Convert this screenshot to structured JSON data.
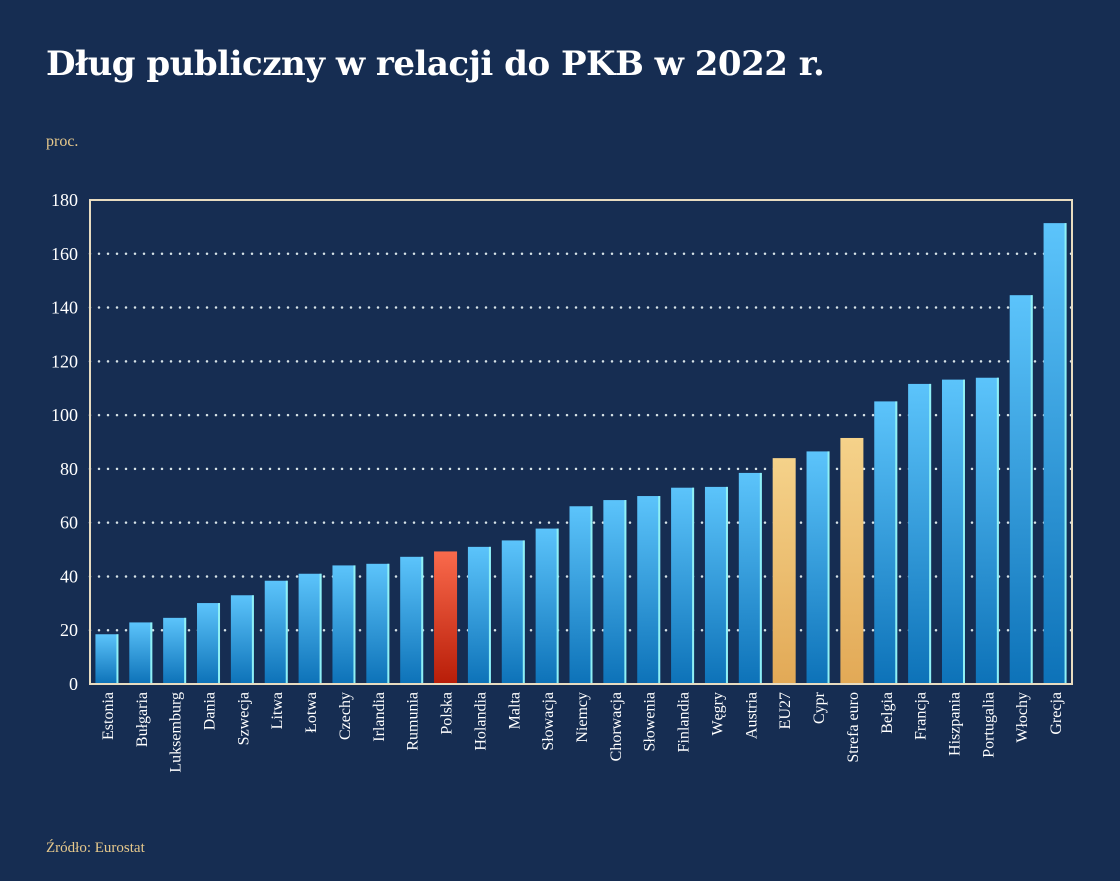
{
  "chart_data": {
    "type": "bar",
    "title": "Dług publiczny w relacji do PKB w 2022 r.",
    "ylabel": "proc.",
    "source": "Źródło: Eurostat",
    "ylim": [
      0,
      180
    ],
    "yticks": [
      0,
      20,
      40,
      60,
      80,
      100,
      120,
      140,
      160,
      180
    ],
    "grid": "horizontal dotted",
    "categories": [
      "Estonia",
      "Bułgaria",
      "Luksemburg",
      "Dania",
      "Szwecja",
      "Litwa",
      "Łotwa",
      "Czechy",
      "Irlandia",
      "Rumunia",
      "Polska",
      "Holandia",
      "Malta",
      "Słowacja",
      "Niemcy",
      "Chorwacja",
      "Słowenia",
      "Finlandia",
      "Węgry",
      "Austria",
      "EU27",
      "Cypr",
      "Strefa euro",
      "Belgia",
      "Francja",
      "Hiszpania",
      "Portugalia",
      "Włochy",
      "Grecja"
    ],
    "values": [
      18.5,
      22.9,
      24.6,
      30.1,
      33.0,
      38.4,
      41.0,
      44.1,
      44.7,
      47.3,
      49.3,
      51.0,
      53.4,
      57.8,
      66.1,
      68.4,
      69.9,
      73.0,
      73.3,
      78.5,
      84.0,
      86.5,
      91.5,
      105.1,
      111.6,
      113.2,
      113.9,
      144.6,
      171.4
    ],
    "colors": {
      "default": "#3aa8ea",
      "highlight": {
        "Polska": "#d83a22",
        "EU27": "#ecbd6c",
        "Strefa euro": "#ecbd6c"
      },
      "background": "#162d52",
      "axis": "#e8dcc0"
    }
  }
}
